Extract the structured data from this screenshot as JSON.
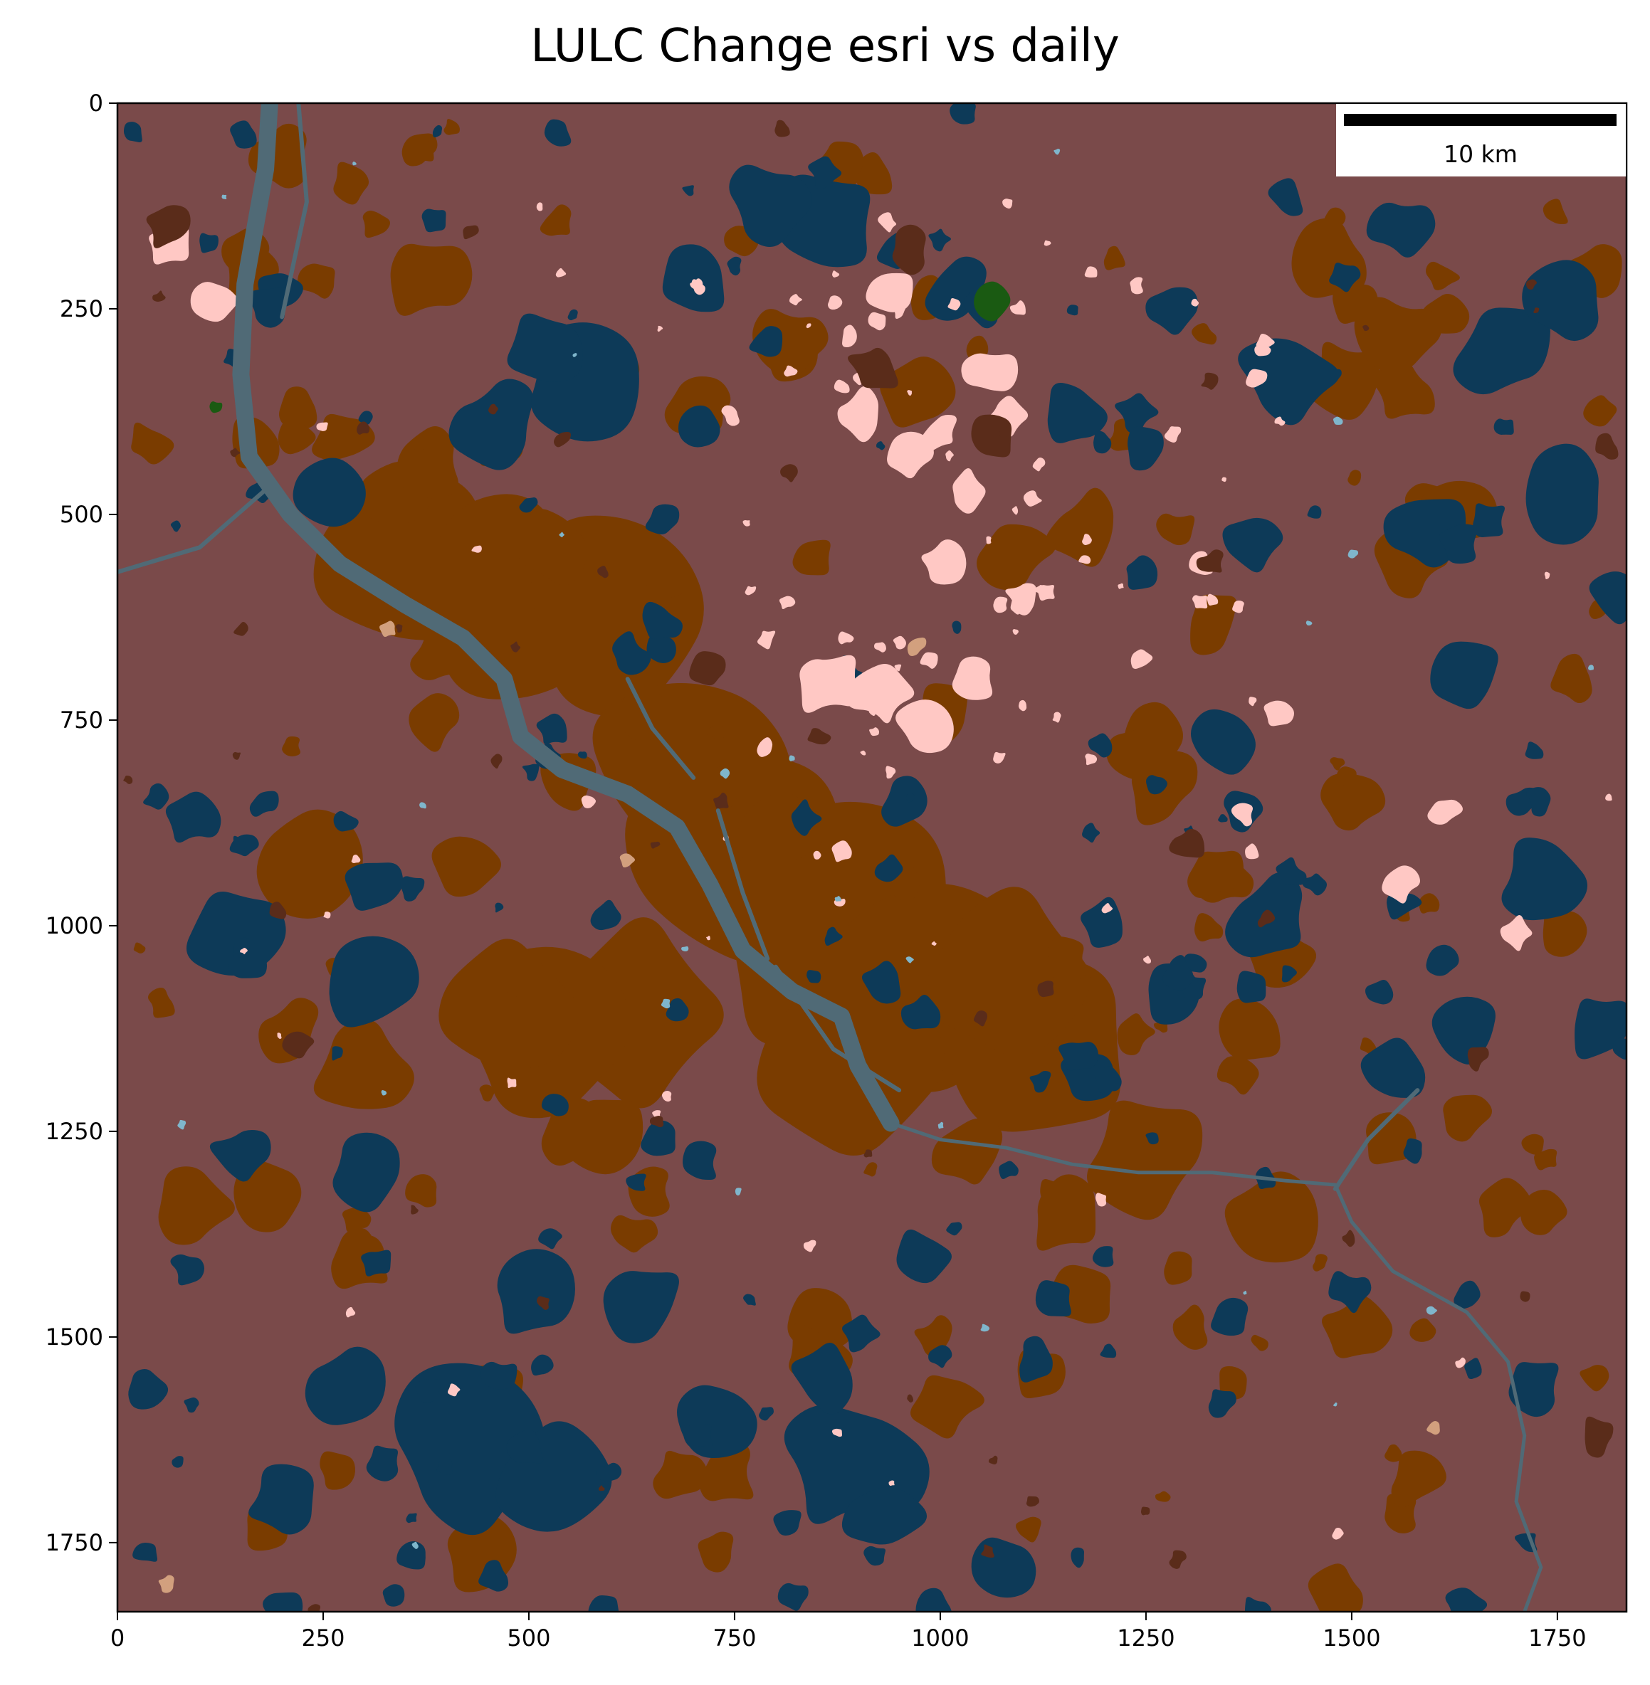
{
  "title": "LULC Change esri vs daily",
  "chart_data": {
    "type": "heatmap",
    "title": "LULC Change esri vs daily",
    "xlabel": "",
    "ylabel": "",
    "xlim": [
      0,
      1834
    ],
    "ylim": [
      1834,
      0
    ],
    "x_ticks": [
      0,
      250,
      500,
      750,
      1000,
      1250,
      1500,
      1750
    ],
    "y_ticks": [
      0,
      250,
      500,
      750,
      1000,
      1250,
      1500,
      1750
    ],
    "x_tick_labels": [
      "0",
      "250",
      "500",
      "750",
      "1000",
      "1250",
      "1500",
      "1750"
    ],
    "y_tick_labels": [
      "0",
      "250",
      "500",
      "750",
      "1000",
      "1250",
      "1500",
      "1750"
    ],
    "grid": false,
    "legend": "none",
    "scale_bar": {
      "label": "10 km",
      "placement": "top-right"
    },
    "colors": {
      "background_class": "#7a4a4a",
      "urban_change": "#7a3c00",
      "water_forest": "#0d3a58",
      "river": "#506a76",
      "pink_patches": "#ffc8c4",
      "dark_brown": "#5a2c1a",
      "tan": "#d2a07e",
      "green": "#1a5a12",
      "light_blue": "#7fb6cc"
    }
  }
}
